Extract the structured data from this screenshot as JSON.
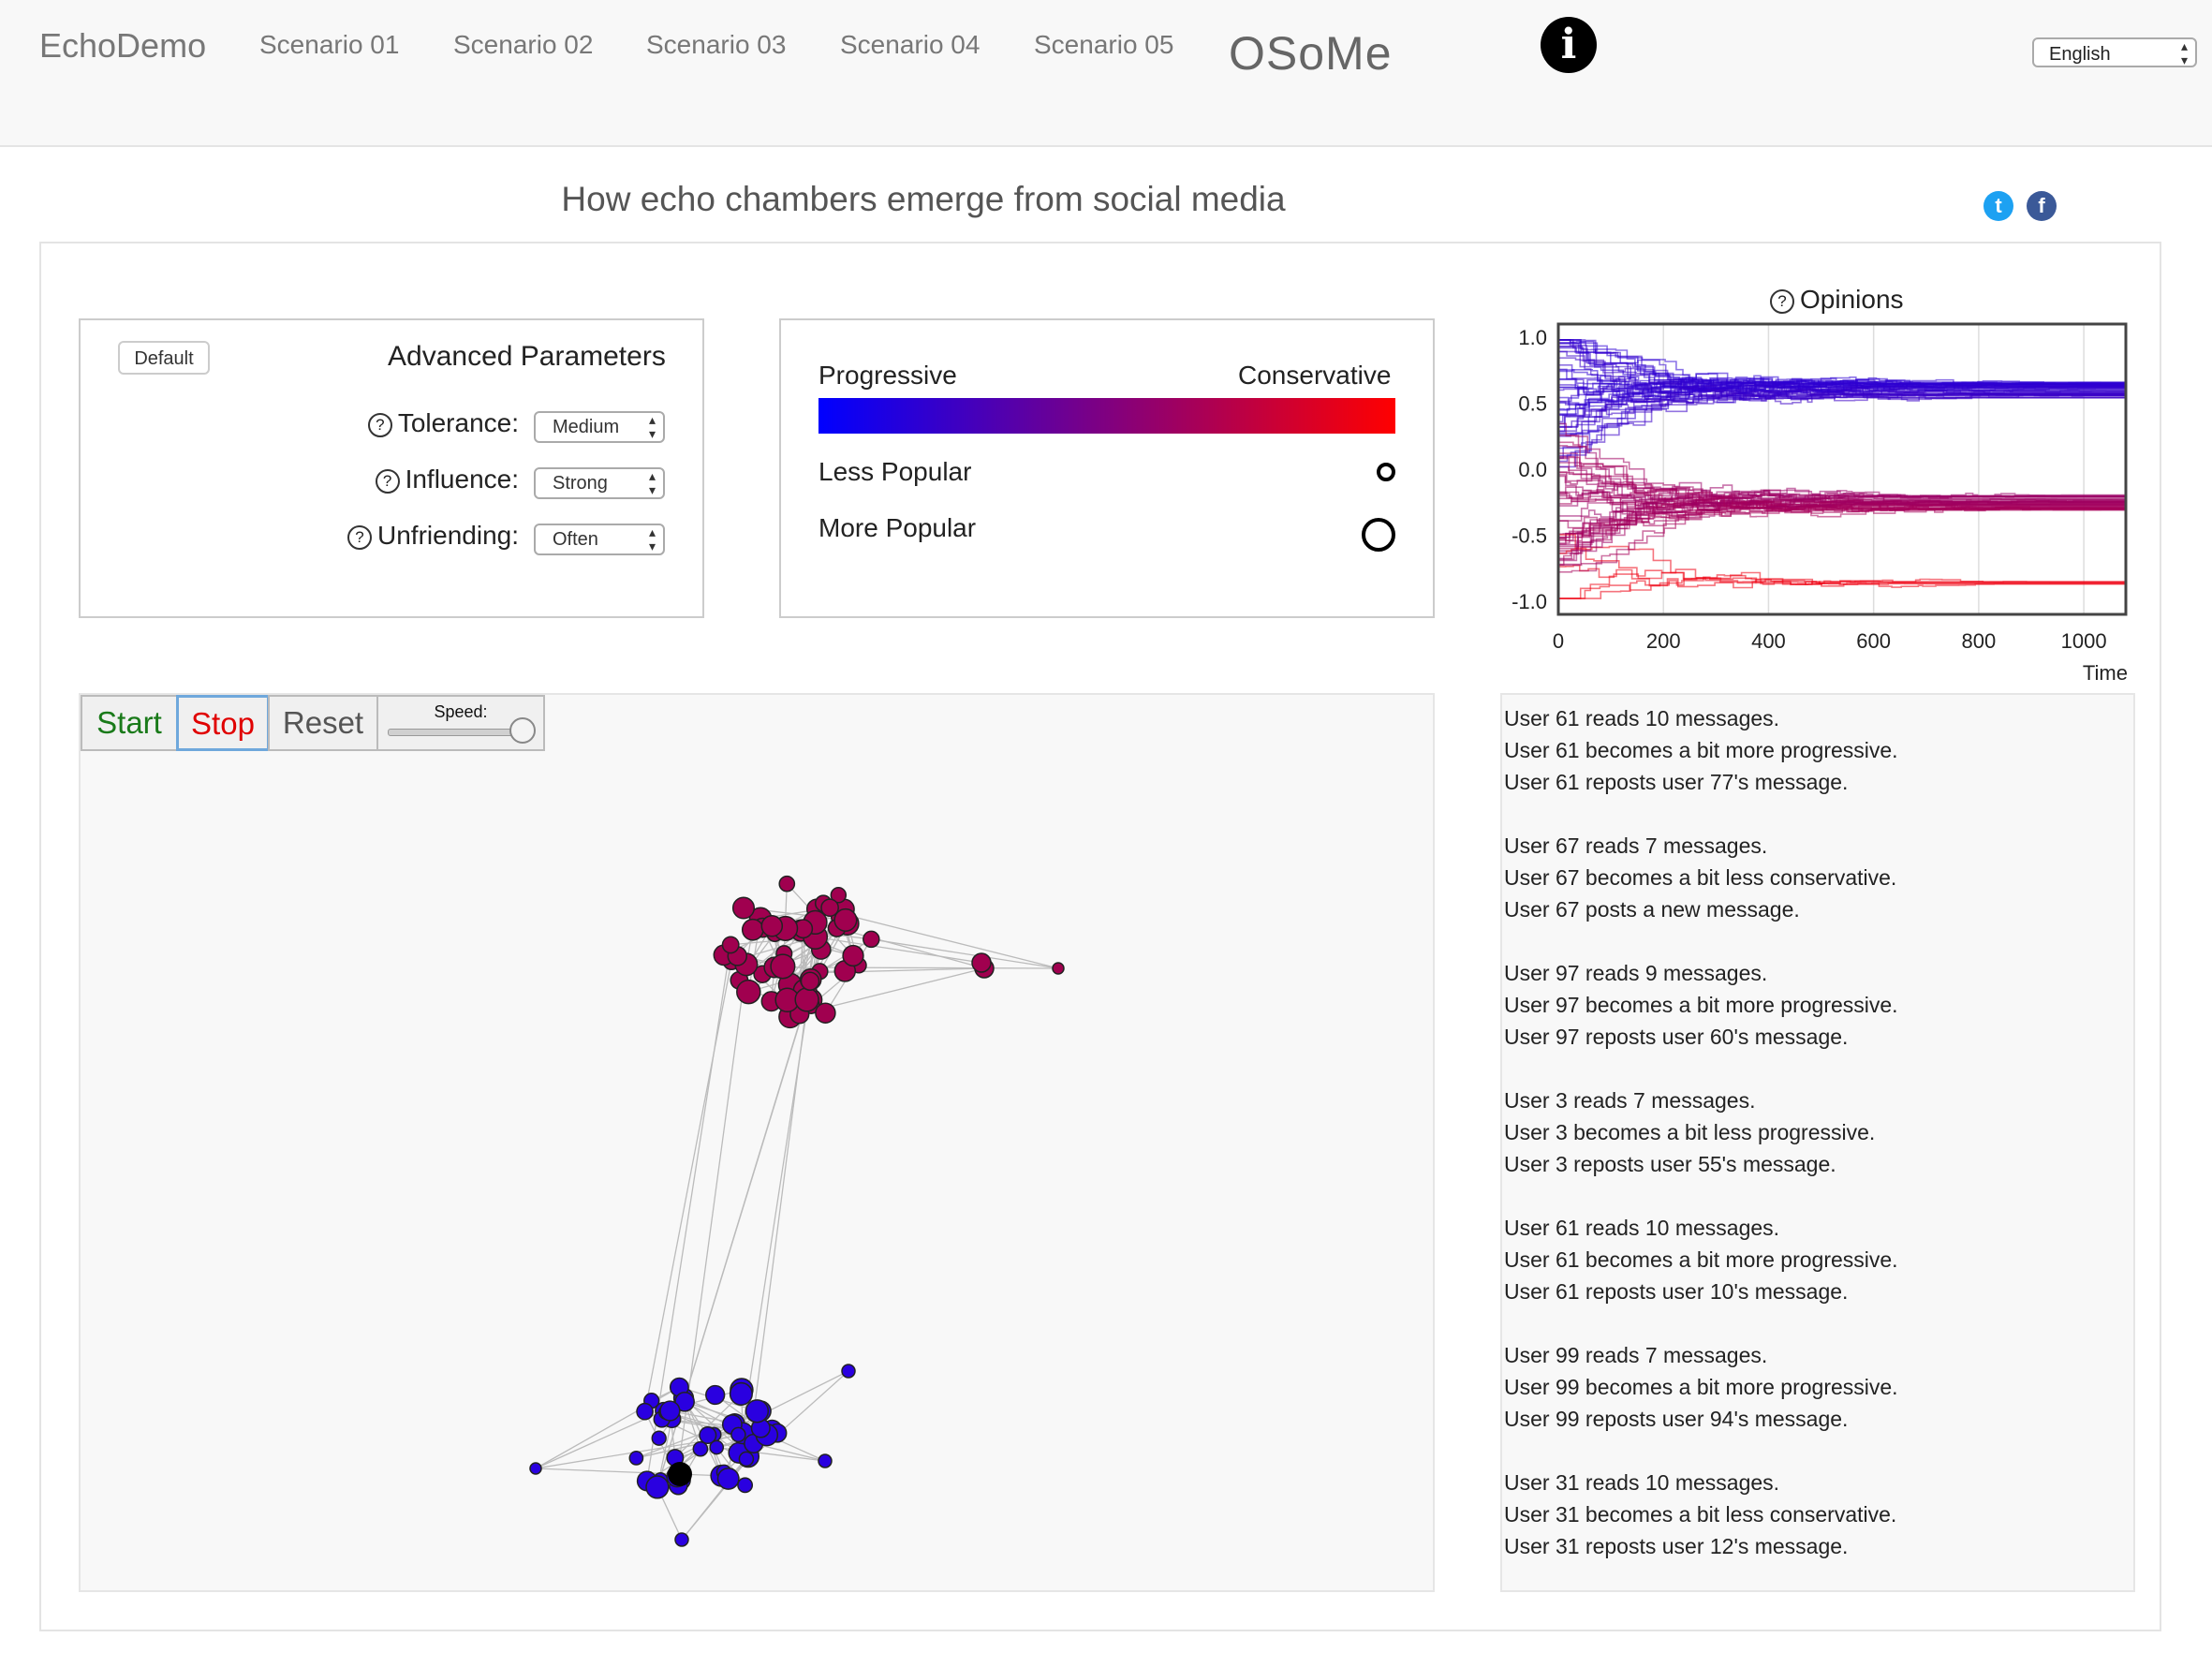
{
  "nav": {
    "brand": "EchoDemo",
    "links": [
      "Scenario 01",
      "Scenario 02",
      "Scenario 03",
      "Scenario 04",
      "Scenario 05"
    ],
    "logo_text": "OSoMe",
    "info_icon": "info-icon",
    "language": "English"
  },
  "page_title": "How echo chambers emerge from social media",
  "social": {
    "twitter_icon": "twitter-icon",
    "facebook_icon": "facebook-icon"
  },
  "parameters": {
    "default_button": "Default",
    "title": "Advanced Parameters",
    "tolerance_label": "Tolerance:",
    "tolerance_value": "Medium",
    "influence_label": "Influence:",
    "influence_value": "Strong",
    "unfriending_label": "Unfriending:",
    "unfriending_value": "Often"
  },
  "legend": {
    "left_label": "Progressive",
    "right_label": "Conservative",
    "less_popular": "Less Popular",
    "more_popular": "More Popular",
    "gradient_colors": [
      "#0000ff",
      "#800080",
      "#ff0000"
    ]
  },
  "controls": {
    "start": "Start",
    "stop": "Stop",
    "reset": "Reset",
    "speed_label": "Speed:",
    "speed_fraction": 1.0,
    "start_color": "#1a7a1a",
    "stop_color": "#e00000"
  },
  "chart_data": {
    "type": "line",
    "title": "Opinions",
    "xlabel": "Time",
    "ylabel": "",
    "xlim": [
      0,
      1080
    ],
    "ylim": [
      -1.1,
      1.1
    ],
    "xticks": [
      0,
      200,
      400,
      600,
      800,
      1000
    ],
    "yticks": [
      1.0,
      0.5,
      0.0,
      -0.5,
      -1.0
    ],
    "ytick_labels": [
      "1.0",
      "0.5",
      "0.0",
      "-0.5",
      "-1.0"
    ],
    "grid": true,
    "series_count": 100,
    "converged_clusters": [
      {
        "final_opinion": 0.6,
        "color": "#2200e0"
      },
      {
        "final_opinion": -0.25,
        "color": "#c0005a"
      },
      {
        "final_opinion": -0.85,
        "color": "#ff6060"
      }
    ]
  },
  "network": {
    "colors": {
      "conservative": "#a0004f",
      "progressive": "#2a00e0",
      "selected": "#000000"
    }
  },
  "log": [
    [
      "User 61 reads 10 messages.",
      "User 61 becomes a bit more progressive.",
      "User 61 reposts user 77's message."
    ],
    [
      "User 67 reads 7 messages.",
      "User 67 becomes a bit less conservative.",
      "User 67 posts a new message."
    ],
    [
      "User 97 reads 9 messages.",
      "User 97 becomes a bit more progressive.",
      "User 97 reposts user 60's message."
    ],
    [
      "User 3 reads 7 messages.",
      "User 3 becomes a bit less progressive.",
      "User 3 reposts user 55's message."
    ],
    [
      "User 61 reads 10 messages.",
      "User 61 becomes a bit more progressive.",
      "User 61 reposts user 10's message."
    ],
    [
      "User 99 reads 7 messages.",
      "User 99 becomes a bit more progressive.",
      "User 99 reposts user 94's message."
    ],
    [
      "User 31 reads 10 messages.",
      "User 31 becomes a bit less conservative.",
      "User 31 reposts user 12's message."
    ]
  ]
}
